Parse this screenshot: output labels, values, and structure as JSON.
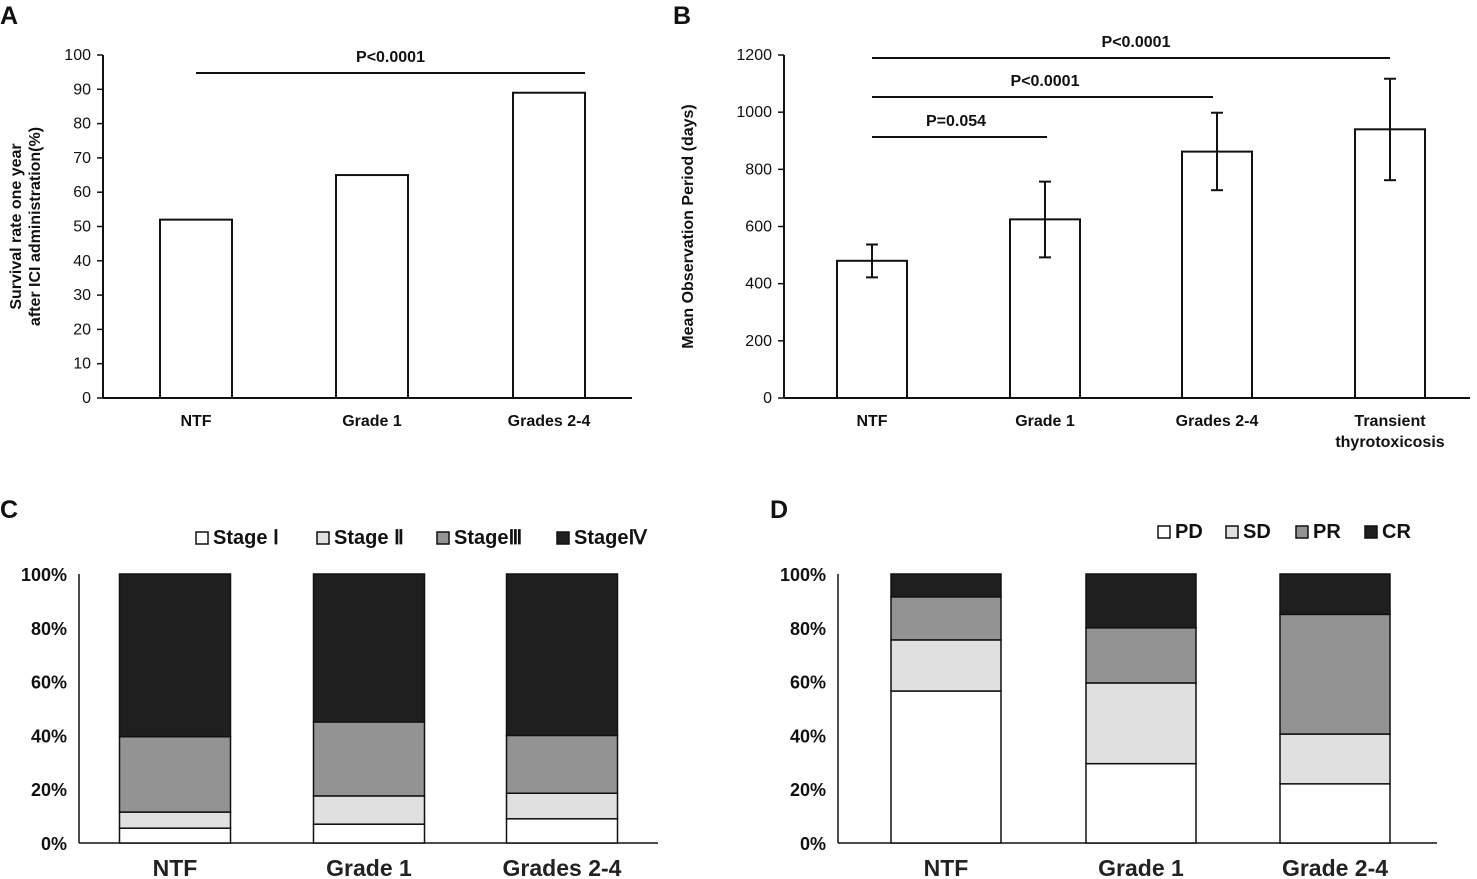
{
  "colors": {
    "axis": "#111111",
    "bar_fill": "#ffffff",
    "stage1": "#ffffff",
    "stage2": "#e0e0e0",
    "stage3": "#939393",
    "stage4": "#1f1f1f"
  },
  "chart_data": [
    {
      "panel": "A",
      "type": "bar",
      "categories": [
        "NTF",
        "Grade 1",
        "Grades 2-4"
      ],
      "values": [
        52,
        65,
        89
      ],
      "ylabel_lines": [
        "Survival rate one year",
        "after ICI administration(%)"
      ],
      "ylim": [
        0,
        100
      ],
      "yticks": [
        "0",
        "10",
        "20",
        "30",
        "40",
        "50",
        "60",
        "70",
        "80",
        "90",
        "100"
      ],
      "grid": false,
      "annotations": [
        {
          "label": "P<0.0001",
          "from": 0,
          "to": 2
        }
      ]
    },
    {
      "panel": "B",
      "type": "bar",
      "categories": [
        "NTF",
        "Grade 1",
        "Grades 2-4",
        "Transient thyrotoxicosis"
      ],
      "category_lines": [
        [
          "NTF"
        ],
        [
          "Grade 1"
        ],
        [
          "Grades 2-4"
        ],
        [
          "Transient",
          "thyrotoxicosis"
        ]
      ],
      "values": [
        480,
        625,
        862,
        940
      ],
      "error_low": [
        422,
        492,
        727,
        762
      ],
      "error_high": [
        537,
        757,
        998,
        1117
      ],
      "ylabel": "Mean Observation Period (days)",
      "ylim": [
        0,
        1200
      ],
      "yticks": [
        "0",
        "200",
        "400",
        "600",
        "800",
        "1000",
        "1200"
      ],
      "grid": false,
      "annotations": [
        {
          "label": "P=0.054",
          "from": 0,
          "to": 1
        },
        {
          "label": "P<0.0001",
          "from": 0,
          "to": 2
        },
        {
          "label": "P<0.0001",
          "from": 0,
          "to": 3
        }
      ]
    },
    {
      "panel": "C",
      "type": "bar",
      "stacked": true,
      "categories": [
        "NTF",
        "Grade 1",
        "Grades 2-4"
      ],
      "series": [
        {
          "name": "Stage Ⅰ",
          "values": [
            5.5,
            7,
            9
          ]
        },
        {
          "name": "Stage Ⅱ",
          "values": [
            6,
            10.5,
            9.5
          ]
        },
        {
          "name": "StageⅢ",
          "values": [
            28,
            27.5,
            21.5
          ]
        },
        {
          "name": "StageⅣ",
          "values": [
            60.5,
            55,
            60
          ]
        }
      ],
      "yticks": [
        "0%",
        "20%",
        "40%",
        "60%",
        "80%",
        "100%"
      ],
      "ylim": [
        0,
        100
      ],
      "legend": "top-right",
      "grid": false
    },
    {
      "panel": "D",
      "type": "bar",
      "stacked": true,
      "categories": [
        "NTF",
        "Grade 1",
        "Grade 2-4"
      ],
      "series": [
        {
          "name": "PD",
          "values": [
            56.5,
            29.5,
            22
          ]
        },
        {
          "name": "SD",
          "values": [
            19,
            30,
            18.5
          ]
        },
        {
          "name": "PR",
          "values": [
            16,
            20.5,
            44.5
          ]
        },
        {
          "name": "CR",
          "values": [
            8.5,
            20,
            15
          ]
        }
      ],
      "yticks": [
        "0%",
        "20%",
        "40%",
        "60%",
        "80%",
        "100%"
      ],
      "ylim": [
        0,
        100
      ],
      "legend": "top-right",
      "grid": false
    }
  ]
}
